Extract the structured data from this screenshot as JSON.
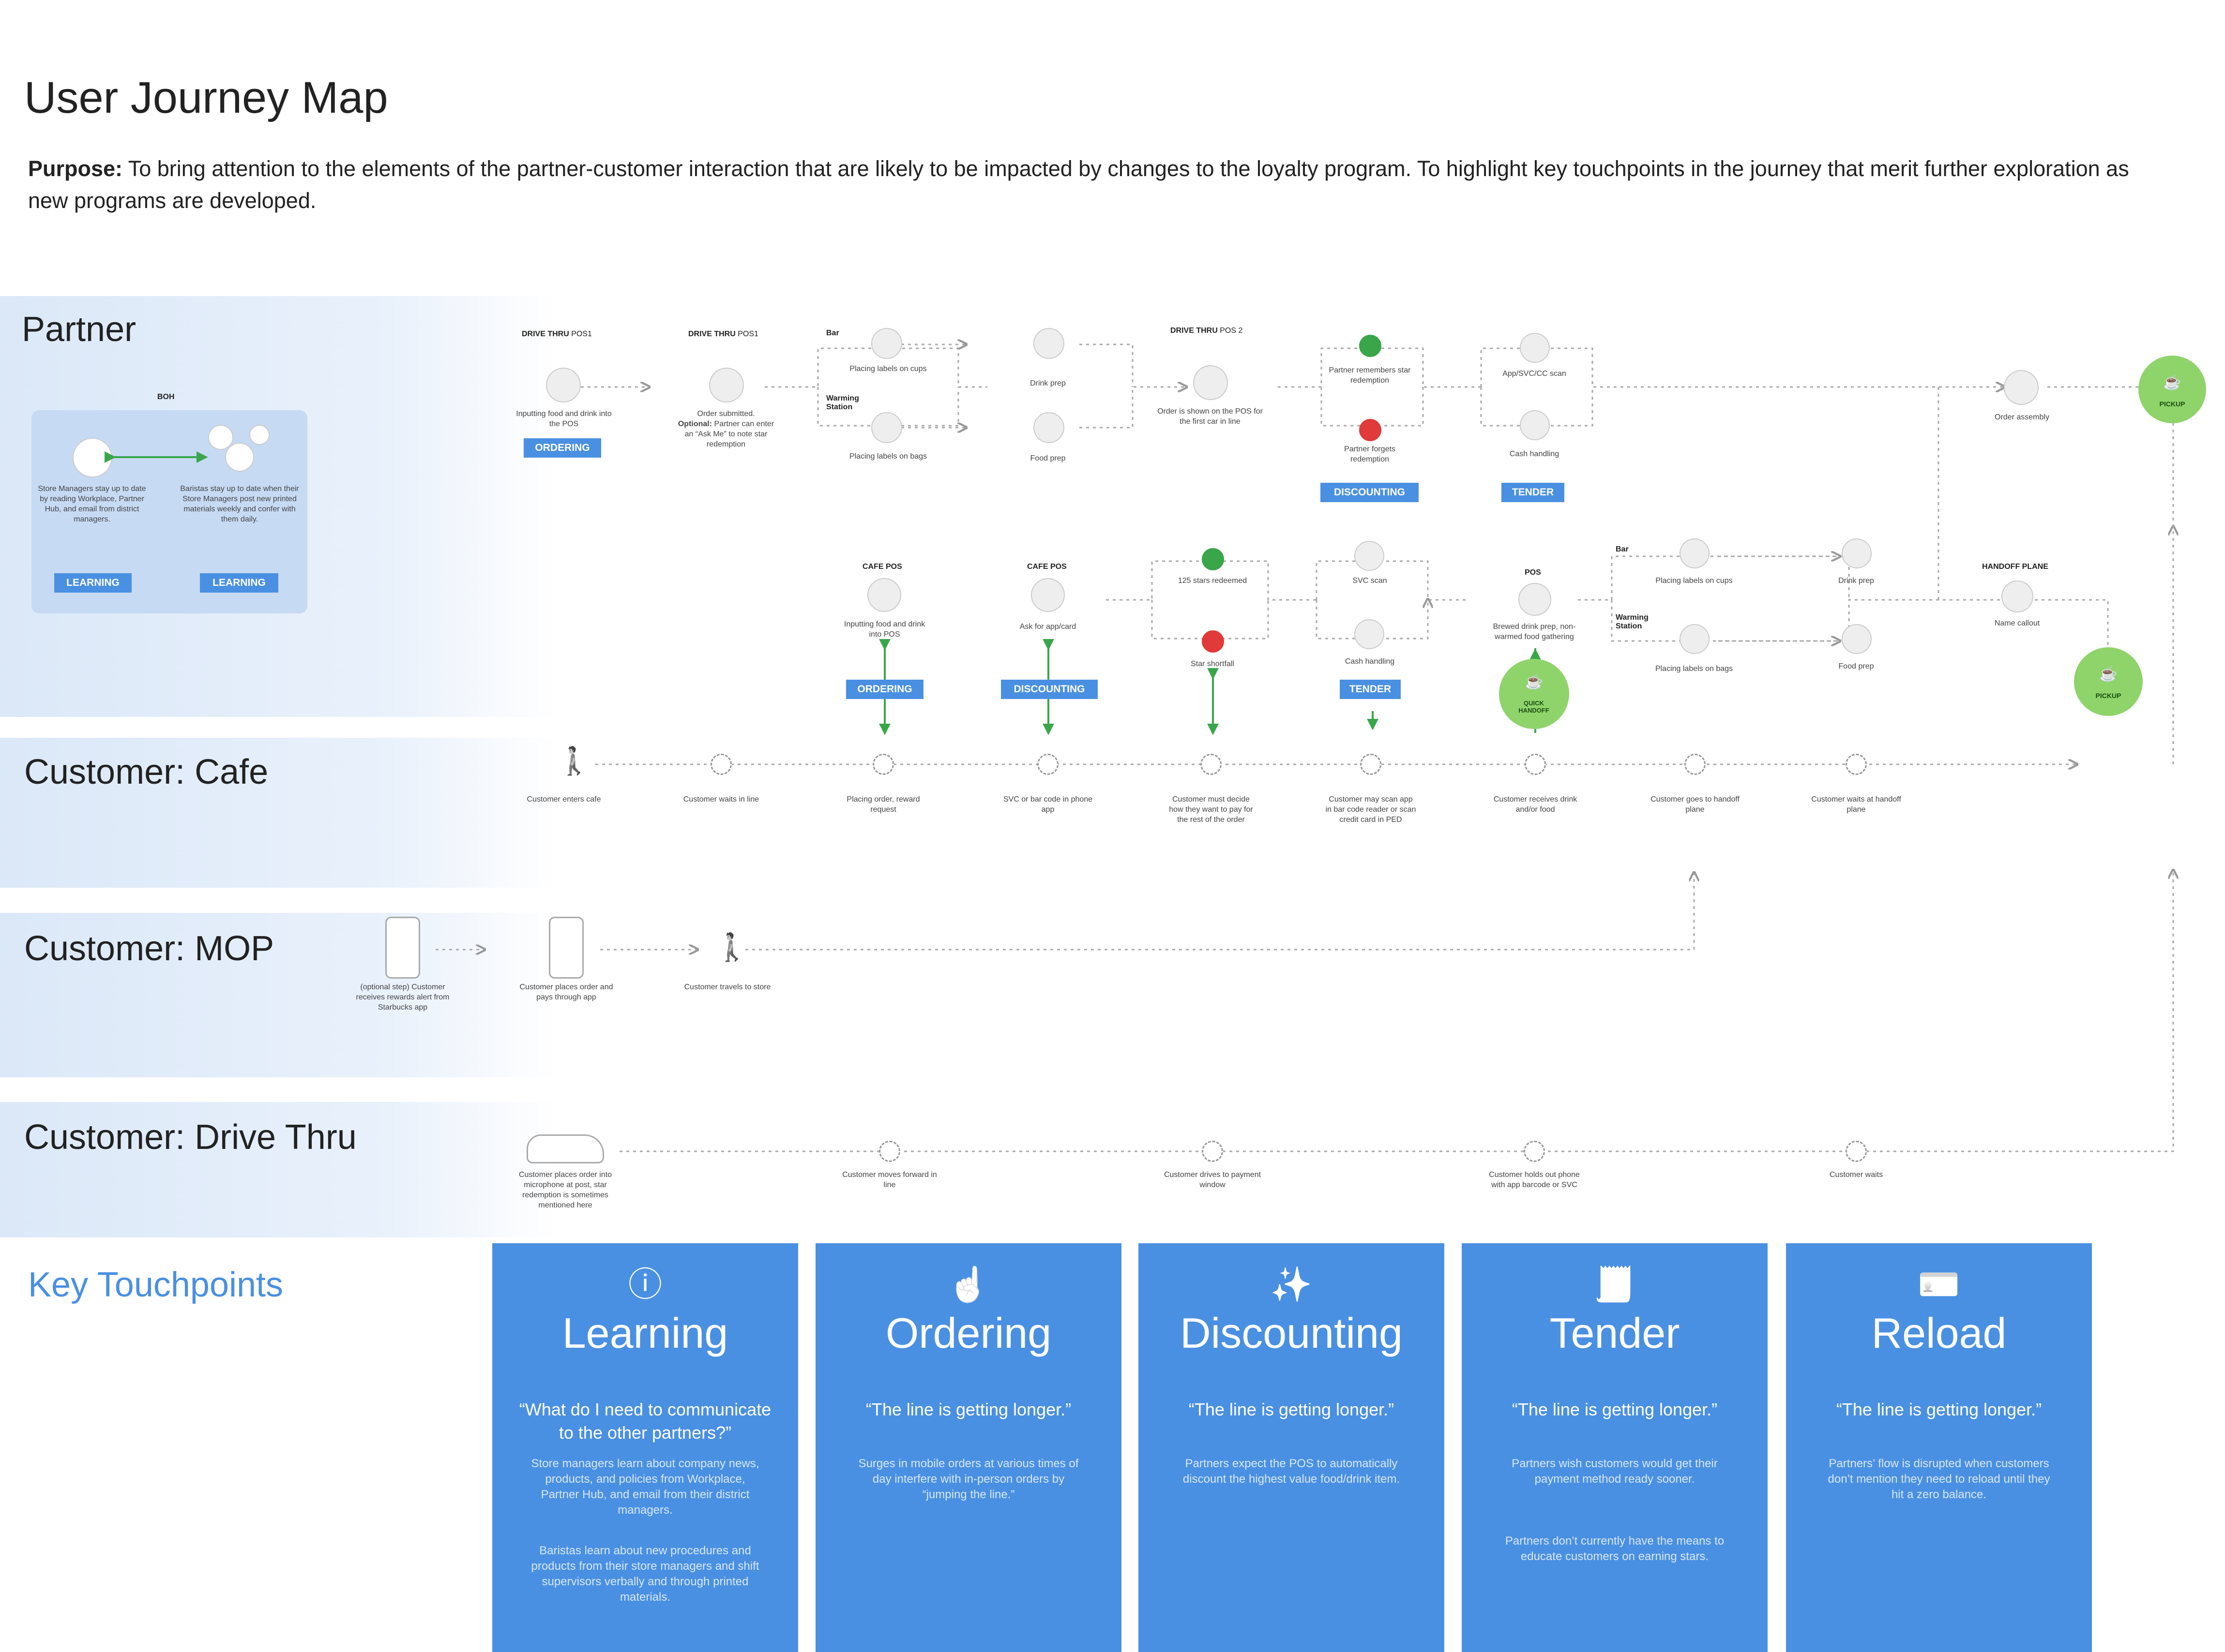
{
  "title": "User Journey Map",
  "purpose": {
    "label": "Purpose:",
    "text": "To bring attention to the elements of the partner-customer interaction that are likely to be impacted by changes to the loyalty program. To highlight key touchpoints in the journey that merit further exploration as new programs are developed."
  },
  "lanes": {
    "partner": "Partner",
    "cafe": "Customer: Cafe",
    "mop": "Customer: MOP",
    "drive": "Customer: Drive Thru",
    "key": "Key Touchpoints"
  },
  "boh": {
    "header": "BOH",
    "store_managers": "Store Managers stay up to date by reading Workplace, Partner Hub, and email from district managers.",
    "baristas": "Baristas stay up to date when their Store Managers post new printed materials weekly and confer with them daily.",
    "tag1": "LEARNING",
    "tag2": "LEARNING"
  },
  "partner_top": {
    "dt_pos1_a_bold": "DRIVE THRU",
    "dt_pos1_a": "POS1",
    "dt_pos1_b_bold": "DRIVE THRU",
    "dt_pos1_b": "POS1",
    "dt_pos2_bold": "DRIVE THRU",
    "dt_pos2": "POS 2",
    "inputting": "Inputting food and drink into the POS",
    "ordering_tag": "ORDERING",
    "order_submitted": "Order submitted.",
    "optional_bold": "Optional:",
    "optional_text": "Partner can enter an “Ask Me” to note star redemption",
    "bar": "Bar",
    "warming": "Warming Station",
    "labels_cups": "Placing labels on cups",
    "labels_bags": "Placing labels on bags",
    "drink_prep": "Drink prep",
    "food_prep": "Food prep",
    "order_shown": "Order is shown on the POS for the first car in line",
    "remembers": "Partner remembers star redemption",
    "forgets": "Partner forgets redemption",
    "discounting_tag": "DISCOUNTING",
    "app_scan": "App/SVC/CC scan",
    "cash": "Cash handling",
    "tender_tag": "TENDER",
    "order_assembly": "Order assembly",
    "pickup": "PICKUP"
  },
  "partner_cafe": {
    "cafe_pos_1": "CAFE POS",
    "cafe_pos_2": "CAFE POS",
    "inputting": "Inputting food and drink into POS",
    "ask_app": "Ask for app/card",
    "ordering_tag": "ORDERING",
    "discounting_tag": "DISCOUNTING",
    "stars_redeemed": "125 stars redeemed",
    "star_shortfall": "Star shortfall",
    "svc_scan": "SVC scan",
    "cash": "Cash handling",
    "tender_tag": "TENDER",
    "pos": "POS",
    "brewed": "Brewed drink prep, non-warmed food gathering",
    "quick_handoff": "QUICK HANDOFF",
    "bar": "Bar",
    "warming": "Warming Station",
    "labels_cups": "Placing labels on cups",
    "labels_bags": "Placing labels on bags",
    "drink_prep": "Drink prep",
    "food_prep": "Food prep",
    "handoff_plane": "HANDOFF PLANE",
    "name_callout": "Name callout",
    "pickup": "PICKUP"
  },
  "cafe_steps": [
    "Customer enters cafe",
    "Customer waits in line",
    "Placing order, reward request",
    "SVC or bar code in phone app",
    "Customer must decide how they want to pay for the rest of the order",
    "Customer may scan app in bar code reader or scan credit card in PED",
    "Customer receives drink and/or food",
    "Customer goes to handoff plane",
    "Customer waits at handoff plane"
  ],
  "mop_steps": [
    "(optional step) Customer receives rewards alert from Starbucks app",
    "Customer places order and pays through app",
    "Customer travels to store"
  ],
  "drive_steps": [
    "Customer places order into microphone at post, star redemption is sometimes mentioned here",
    "Customer moves forward in line",
    "Customer drives to payment window",
    "Customer holds out phone with app barcode or SVC",
    "Customer waits"
  ],
  "cards": [
    {
      "title": "Learning",
      "quote": "“What do I need to communicate to the other partners?”",
      "body1": "Store managers learn about company news, products, and policies from Workplace, Partner Hub, and email from their district managers.",
      "body2": "Baristas learn about new procedures and products from their store managers and shift supervisors verbally and through printed materials.",
      "icon": "info-icon"
    },
    {
      "title": "Ordering",
      "quote": "“The line is getting longer.”",
      "body1": "Surges in mobile orders at various times of day interfere with in-person orders by “jumping the line.”",
      "body2": "",
      "icon": "pointing-hand-icon"
    },
    {
      "title": "Discounting",
      "quote": "“The line is getting longer.”",
      "body1": "Partners expect the POS to automatically discount the highest value food/drink item.",
      "body2": "",
      "icon": "sparkle-icon"
    },
    {
      "title": "Tender",
      "quote": "“The line is getting longer.”",
      "body1": "Partners wish customers would get their payment method ready sooner.",
      "body2": "Partners don’t currently have the means to educate customers on earning stars.",
      "icon": "receipt-icon"
    },
    {
      "title": "Reload",
      "quote": "“The line is getting longer.”",
      "body1": "Partners’ flow is disrupted when customers don’t mention they need to reload until they hit a zero balance.",
      "body2": "",
      "icon": "id-card-icon"
    }
  ],
  "colors": {
    "accent": "#4a90e2",
    "green": "#8fd46b",
    "happy": "#3aa64a",
    "sad": "#e03a3a",
    "lane": "#dfeaf8"
  }
}
